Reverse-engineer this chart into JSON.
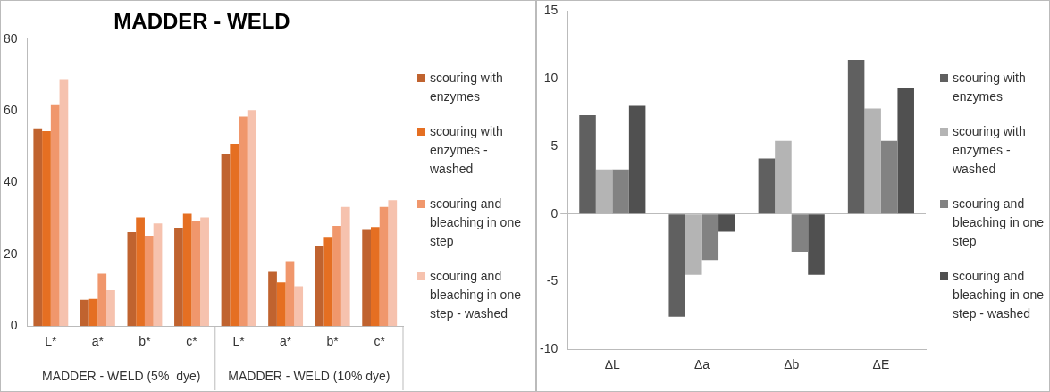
{
  "chart_data": [
    {
      "type": "bar",
      "title": "MADDER - WELD",
      "categories": [
        "L*",
        "a*",
        "b*",
        "c*",
        "L*",
        "a*",
        "b*",
        "c*"
      ],
      "series": [
        {
          "name": "scouring with enzymes",
          "color": "#c0632f",
          "values": [
            55.1,
            7.3,
            26.2,
            27.4,
            47.9,
            15.1,
            22.2,
            26.8
          ]
        },
        {
          "name": "scouring with enzymes - washed",
          "color": "#e56f22",
          "values": [
            54.3,
            7.6,
            30.3,
            31.3,
            50.8,
            12.2,
            24.9,
            27.6
          ]
        },
        {
          "name": "scouring and bleaching in one step",
          "color": "#f0976c",
          "values": [
            61.6,
            14.6,
            25.2,
            29.2,
            58.4,
            18.1,
            27.9,
            33.2
          ]
        },
        {
          "name": "scouring and bleaching in one step - washed",
          "color": "#f6c2ae",
          "values": [
            68.6,
            10.0,
            28.6,
            30.3,
            60.2,
            11.1,
            33.2,
            35.1
          ]
        }
      ],
      "ylim": [
        0,
        80
      ],
      "yticks": [
        0,
        20,
        40,
        60,
        80
      ],
      "legend": "right",
      "annotations": [
        "MADDER - WELD (5%  dye)",
        "MADDER - WELD (10% dye)"
      ]
    },
    {
      "type": "bar",
      "categories": [
        "ΔL",
        "Δa",
        "Δb",
        "ΔE"
      ],
      "series": [
        {
          "name": "scouring with enzymes",
          "color": "#606060",
          "values": [
            7.3,
            -7.6,
            4.1,
            11.4
          ]
        },
        {
          "name": "scouring with enzymes - washed",
          "color": "#b4b4b4",
          "values": [
            3.3,
            -4.5,
            5.4,
            7.8
          ]
        },
        {
          "name": "scouring and bleaching in one step",
          "color": "#828282",
          "values": [
            3.3,
            -3.4,
            -2.8,
            5.4
          ]
        },
        {
          "name": "scouring and bleaching in one step - washed",
          "color": "#505050",
          "values": [
            8.0,
            -1.3,
            -4.5,
            9.3
          ]
        }
      ],
      "ylim": [
        -10,
        15
      ],
      "yticks": [
        -10,
        -5,
        0,
        5,
        10,
        15
      ],
      "legend": "right"
    }
  ]
}
